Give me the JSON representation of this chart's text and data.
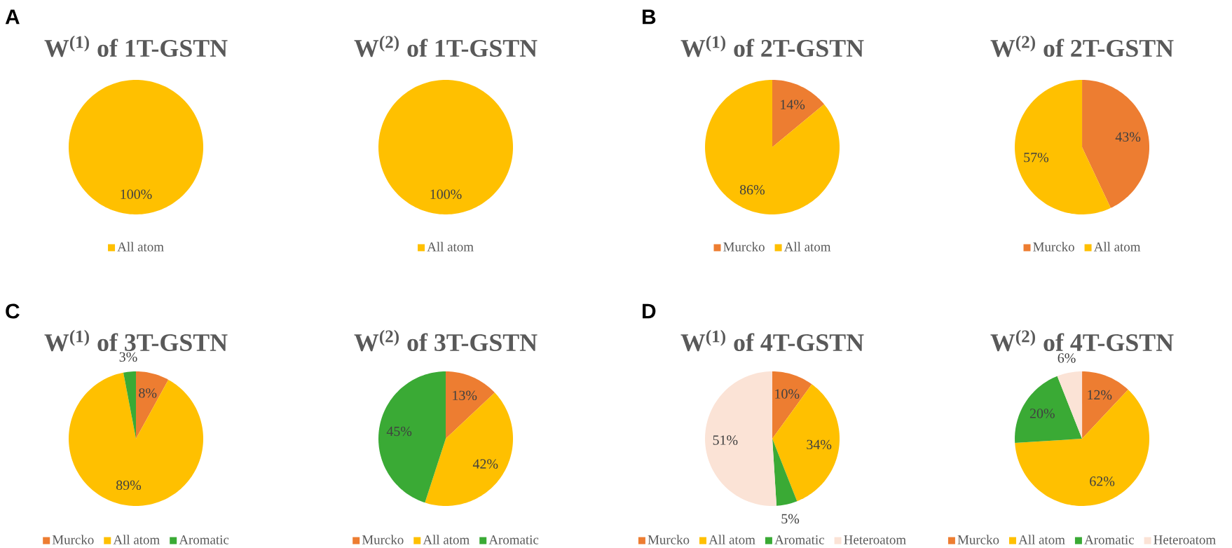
{
  "chart_data": [
    {
      "type": "pie",
      "title": "W$^{(1)}$ of 1T-GSTN",
      "annotations": [
        "A"
      ],
      "categories": [
        "All atom"
      ],
      "values": [
        100
      ],
      "colors": [
        "#ffc000"
      ],
      "value_labels": [
        "100%"
      ],
      "legend": "bottom"
    },
    {
      "type": "pie",
      "title": "W$^{(2)}$ of 1T-GSTN",
      "categories": [
        "All atom"
      ],
      "values": [
        100
      ],
      "colors": [
        "#ffc000"
      ],
      "value_labels": [
        "100%"
      ],
      "legend": "bottom"
    },
    {
      "type": "pie",
      "title": "W$^{(1)}$ of 2T-GSTN",
      "annotations": [
        "B"
      ],
      "categories": [
        "Murcko",
        "All atom"
      ],
      "values": [
        14,
        86
      ],
      "colors": [
        "#ed7d31",
        "#ffc000"
      ],
      "value_labels": [
        "14%",
        "86%"
      ],
      "legend": "bottom"
    },
    {
      "type": "pie",
      "title": "W$^{(2)}$ of 2T-GSTN",
      "categories": [
        "Murcko",
        "All atom"
      ],
      "values": [
        43,
        57
      ],
      "colors": [
        "#ed7d31",
        "#ffc000"
      ],
      "value_labels": [
        "43%",
        "57%"
      ],
      "legend": "bottom"
    },
    {
      "type": "pie",
      "title": "W$^{(1)}$ of 3T-GSTN",
      "annotations": [
        "C"
      ],
      "categories": [
        "Murcko",
        "All atom",
        "Aromatic"
      ],
      "values": [
        8,
        89,
        3
      ],
      "colors": [
        "#ed7d31",
        "#ffc000",
        "#3aaa35"
      ],
      "value_labels": [
        "8%",
        "89%",
        "3%"
      ],
      "legend": "bottom"
    },
    {
      "type": "pie",
      "title": "W$^{(2)}$ of 3T-GSTN",
      "categories": [
        "Murcko",
        "All atom",
        "Aromatic"
      ],
      "values": [
        13,
        42,
        45
      ],
      "colors": [
        "#ed7d31",
        "#ffc000",
        "#3aaa35"
      ],
      "value_labels": [
        "13%",
        "42%",
        "45%"
      ],
      "legend": "bottom"
    },
    {
      "type": "pie",
      "title": "W$^{(1)}$ of 4T-GSTN",
      "annotations": [
        "D"
      ],
      "categories": [
        "Murcko",
        "All atom",
        "Aromatic",
        "Heteroatom"
      ],
      "values": [
        10,
        34,
        5,
        51
      ],
      "colors": [
        "#ed7d31",
        "#ffc000",
        "#3aaa35",
        "#fbe3d6"
      ],
      "value_labels": [
        "10%",
        "34%",
        "5%",
        "51%"
      ],
      "legend": "bottom"
    },
    {
      "type": "pie",
      "title": "W$^{(2)}$ of 4T-GSTN",
      "categories": [
        "Murcko",
        "All atom",
        "Aromatic",
        "Heteroatom"
      ],
      "values": [
        12,
        62,
        20,
        6
      ],
      "colors": [
        "#ed7d31",
        "#ffc000",
        "#3aaa35",
        "#fbe3d6"
      ],
      "value_labels": [
        "12%",
        "62%",
        "20%",
        "6%"
      ],
      "legend": "bottom"
    }
  ]
}
